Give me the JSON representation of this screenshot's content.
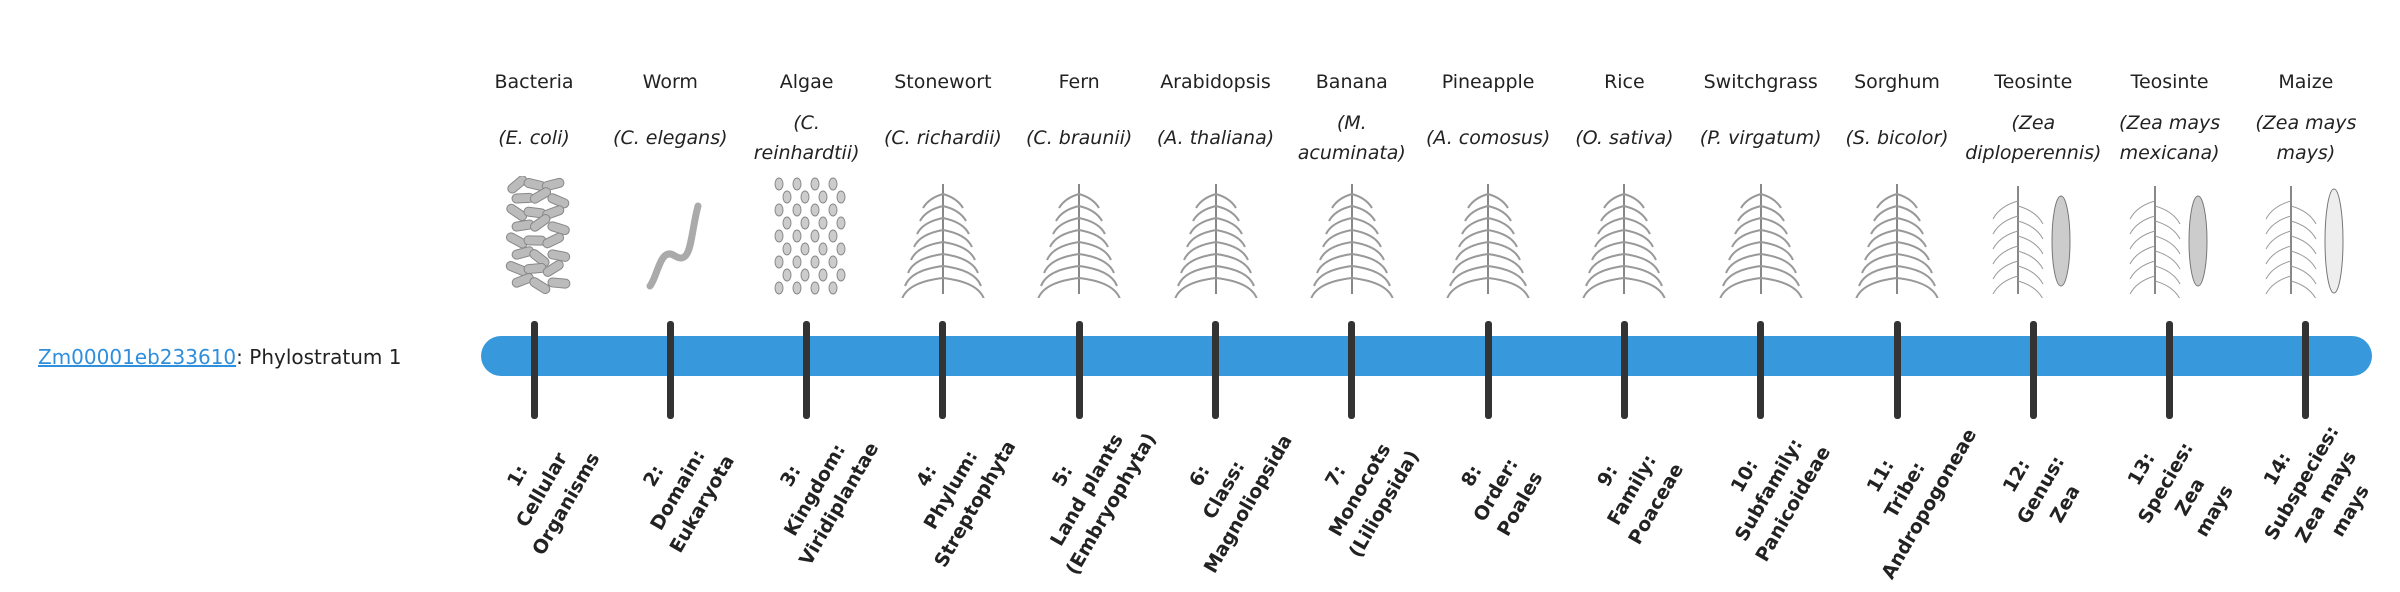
{
  "gene": {
    "id": "Zm00001eb233610",
    "suffix": ": Phylostratum 1"
  },
  "colors": {
    "bar": "#3799dc",
    "tick": "#333333",
    "link": "#2f8fdc",
    "illustration": "#9a9a9a"
  },
  "strata": [
    {
      "common": "Bacteria",
      "scientific": "(E. coli)",
      "icon": "bacteria-icon",
      "label_lines": [
        "1:",
        "Cellular",
        "Organisms"
      ]
    },
    {
      "common": "Worm",
      "scientific": "(C. elegans)",
      "icon": "worm-icon",
      "label_lines": [
        "2:",
        "Domain:",
        "Eukaryota"
      ]
    },
    {
      "common": "Algae",
      "scientific": "(C. reinhardtii)",
      "icon": "algae-icon",
      "label_lines": [
        "3:",
        "Kingdom:",
        "Viridiplantae"
      ]
    },
    {
      "common": "Stonewort",
      "scientific": "(C. richardii)",
      "icon": "stonewort-icon",
      "label_lines": [
        "4:",
        "Phylum:",
        "Streptophyta"
      ]
    },
    {
      "common": "Fern",
      "scientific": "(C. braunii)",
      "icon": "fern-icon",
      "label_lines": [
        "5:",
        "Land plants",
        "(Embryophyta)"
      ]
    },
    {
      "common": "Arabidopsis",
      "scientific": "(A. thaliana)",
      "icon": "arabidopsis-icon",
      "label_lines": [
        "6:",
        "Class:",
        "Magnoliopsida"
      ]
    },
    {
      "common": "Banana",
      "scientific": "(M. acuminata)",
      "icon": "banana-icon",
      "label_lines": [
        "7:",
        "Monocots",
        "(Liliopsida)"
      ]
    },
    {
      "common": "Pineapple",
      "scientific": "(A. comosus)",
      "icon": "pineapple-icon",
      "label_lines": [
        "8:",
        "Order:",
        "Poales"
      ]
    },
    {
      "common": "Rice",
      "scientific": "(O. sativa)",
      "icon": "rice-icon",
      "label_lines": [
        "9:",
        "Family:",
        "Poaceae"
      ]
    },
    {
      "common": "Switchgrass",
      "scientific": "(P. virgatum)",
      "icon": "switchgrass-icon",
      "label_lines": [
        "10:",
        "Subfamily:",
        "Panicoideae"
      ]
    },
    {
      "common": "Sorghum",
      "scientific": "(S. bicolor)",
      "icon": "sorghum-icon",
      "label_lines": [
        "11:",
        "Tribe:",
        "Andropogoneae"
      ]
    },
    {
      "common": "Teosinte",
      "scientific": "(Zea diploperennis)",
      "icon": "teosinte-icon",
      "label_lines": [
        "12:",
        "Genus:",
        "Zea"
      ]
    },
    {
      "common": "Teosinte",
      "scientific": "(Zea mays mexicana)",
      "icon": "teosinte-mexicana-icon",
      "label_lines": [
        "13:",
        "Species:",
        "Zea",
        "mays"
      ]
    },
    {
      "common": "Maize",
      "scientific": "(Zea mays mays)",
      "icon": "maize-icon",
      "label_lines": [
        "14:",
        "Subspecies:",
        "Zea mays",
        "mays"
      ]
    }
  ]
}
